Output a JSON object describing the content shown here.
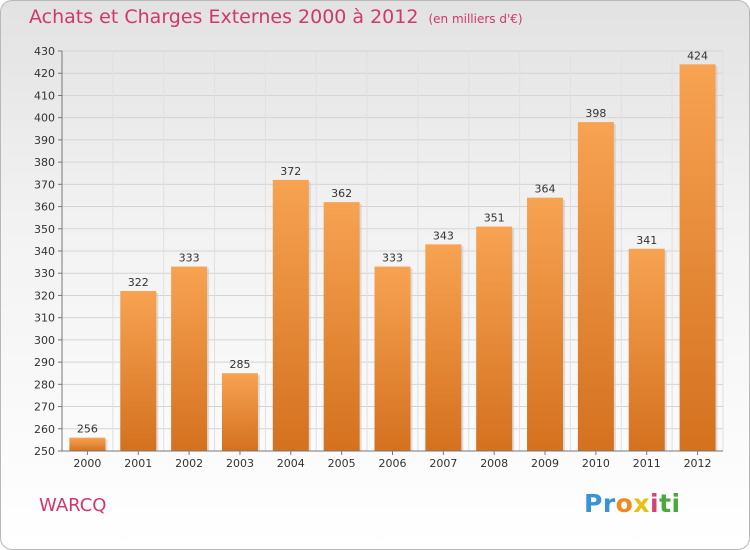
{
  "header": {
    "title": "Achats et Charges Externes 2000 à 2012",
    "subtitle": "(en milliers d'€)"
  },
  "commune": "WARCQ",
  "logo": {
    "parts": [
      "Pr",
      "o",
      "x",
      "i",
      "ti"
    ],
    "colors": [
      "#3a93d6",
      "#f08a1c",
      "#e8c015",
      "#d64078",
      "#4aa83c"
    ]
  },
  "chart_data": {
    "type": "bar",
    "title": "Achats et Charges Externes 2000 à 2012",
    "subtitle": "(en milliers d'€)",
    "xlabel": "",
    "ylabel": "",
    "categories": [
      "2000",
      "2001",
      "2002",
      "2003",
      "2004",
      "2005",
      "2006",
      "2007",
      "2008",
      "2009",
      "2010",
      "2011",
      "2012"
    ],
    "values": [
      256,
      322,
      333,
      285,
      372,
      362,
      333,
      343,
      351,
      364,
      398,
      341,
      424
    ],
    "ylim": [
      250,
      430
    ],
    "yticks": [
      250,
      260,
      270,
      280,
      290,
      300,
      310,
      320,
      330,
      340,
      350,
      360,
      370,
      380,
      390,
      400,
      410,
      420,
      430
    ],
    "grid": true,
    "bar_color": "#f2923a"
  }
}
